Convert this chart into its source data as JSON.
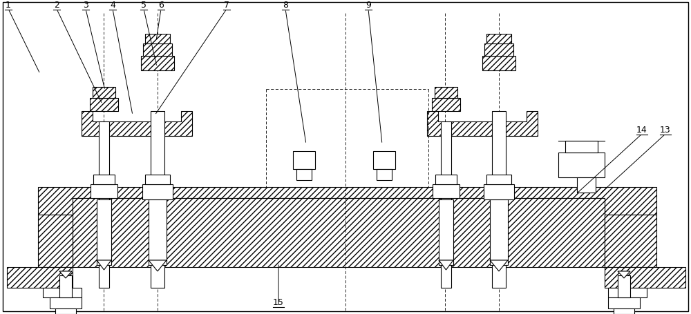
{
  "bg_color": "#ffffff",
  "line_color": "#000000",
  "fig_width": 10.0,
  "fig_height": 4.56,
  "dpi": 100,
  "labels_info": [
    [
      "1",
      12,
      14,
      58,
      108
    ],
    [
      "2",
      82,
      14,
      148,
      152
    ],
    [
      "3",
      124,
      14,
      152,
      132
    ],
    [
      "4",
      163,
      14,
      192,
      168
    ],
    [
      "5",
      208,
      14,
      227,
      98
    ],
    [
      "6",
      233,
      14,
      226,
      60
    ],
    [
      "7",
      328,
      14,
      224,
      168
    ],
    [
      "8",
      413,
      14,
      443,
      210
    ],
    [
      "9",
      533,
      14,
      553,
      210
    ],
    [
      "13",
      963,
      195,
      868,
      282
    ],
    [
      "14",
      929,
      195,
      834,
      282
    ],
    [
      "15",
      403,
      445,
      403,
      382
    ]
  ]
}
